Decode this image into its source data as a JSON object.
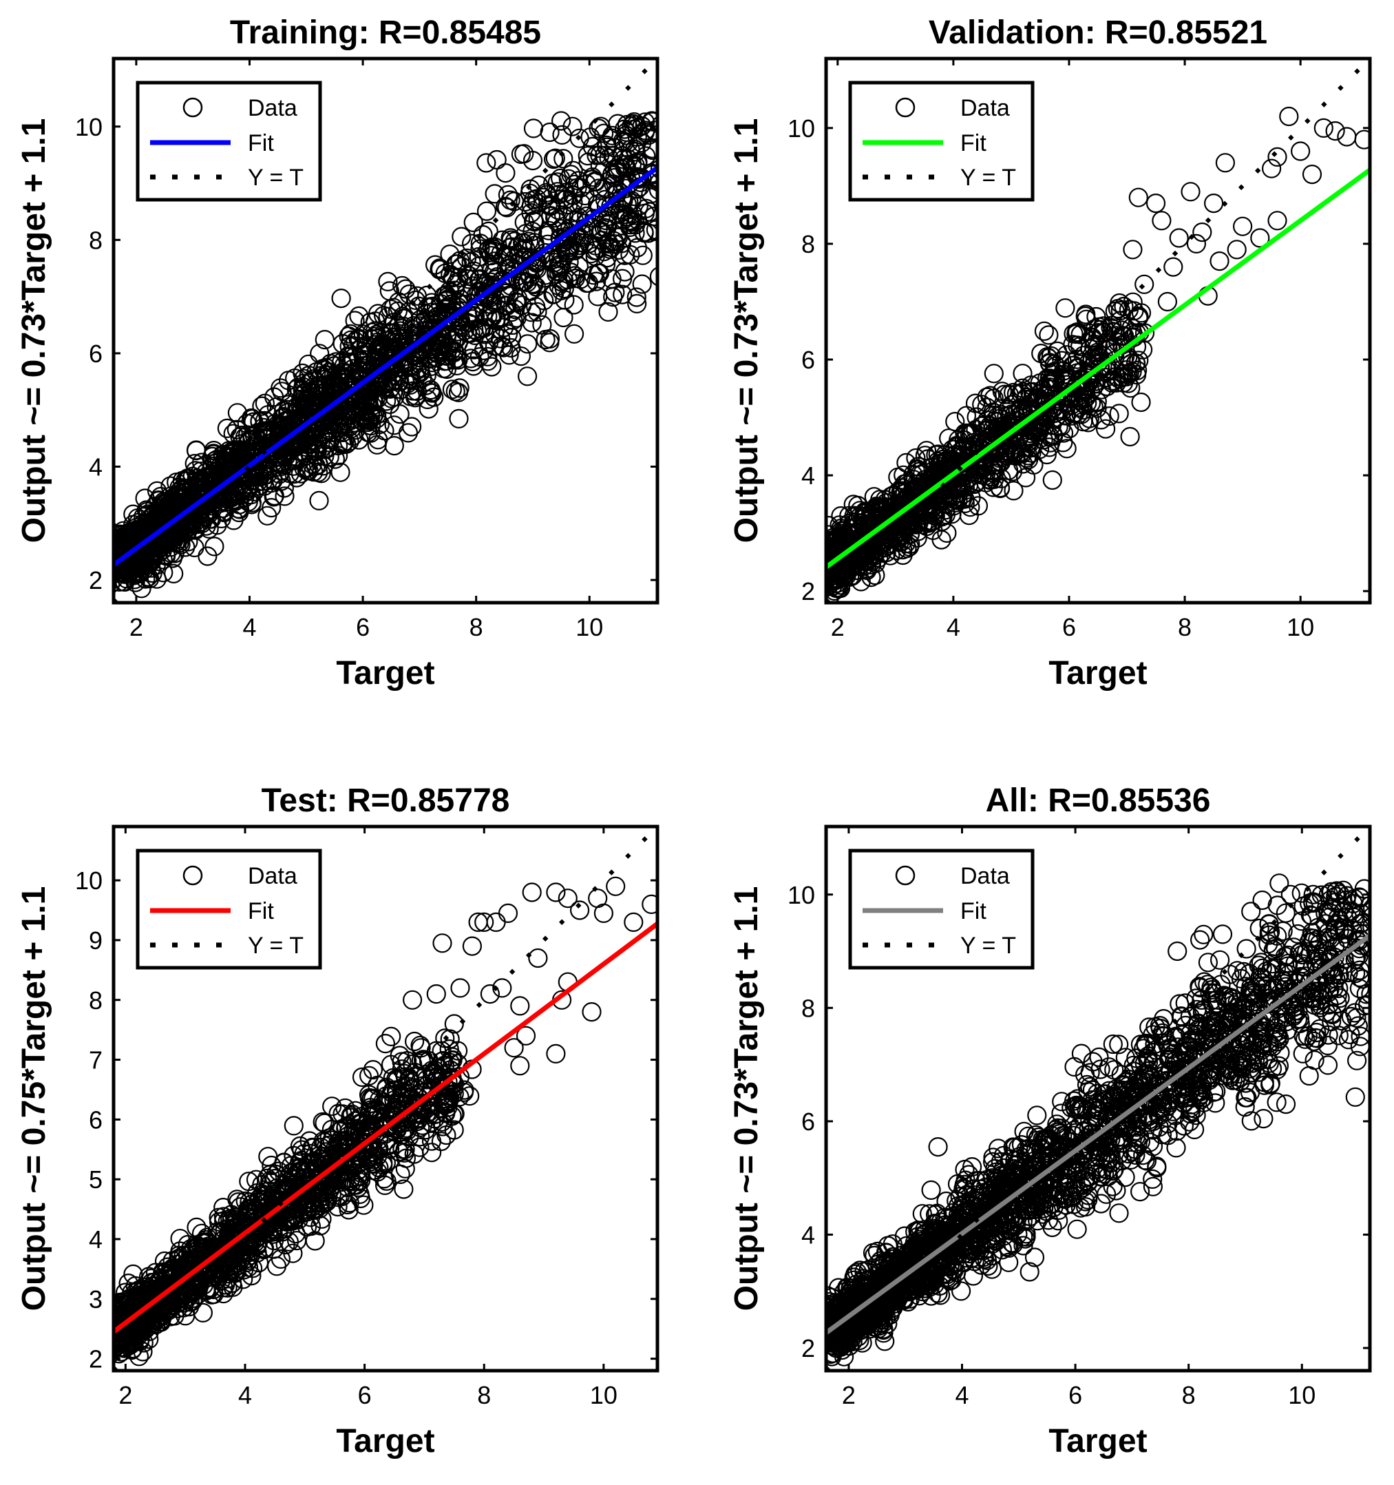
{
  "figure": {
    "background": "#ffffff",
    "axis_color": "#000000",
    "data_marker_color": "#000000"
  },
  "chart_data": [
    {
      "type": "scatter",
      "title": "Training: R=0.85485",
      "xlabel": "Target",
      "ylabel": "Output ~= 0.73*Target + 1.1",
      "xlim": [
        1.6,
        11.2
      ],
      "ylim": [
        1.6,
        11.2
      ],
      "xticks": [
        2,
        4,
        6,
        8,
        10
      ],
      "yticks": [
        2,
        4,
        6,
        8,
        10
      ],
      "legend": {
        "position": "top-left",
        "entries": [
          "Data",
          "Fit",
          "Y = T"
        ]
      },
      "fit": {
        "slope": 0.73,
        "intercept": 1.1,
        "color": "#0000ff"
      },
      "identity_line": {
        "label": "Y = T",
        "style": "dotted",
        "color": "#000000"
      },
      "data_cloud": {
        "x_range": [
          1.7,
          11.1
        ],
        "y_range": [
          1.8,
          10.1
        ],
        "spread": 0.6,
        "seed": 11,
        "count": 2200
      },
      "outliers": [
        [
          9.5,
          10.1
        ],
        [
          10.2,
          10.0
        ],
        [
          10.8,
          9.6
        ],
        [
          11.1,
          10.1
        ],
        [
          10.5,
          10.05
        ],
        [
          9.3,
          9.9
        ],
        [
          9.7,
          10.0
        ],
        [
          9.0,
          9.4
        ]
      ]
    },
    {
      "type": "scatter",
      "title": "Validation: R=0.85521",
      "xlabel": "Target",
      "ylabel": "Output ~= 0.73*Target + 1.1",
      "xlim": [
        1.8,
        11.2
      ],
      "ylim": [
        1.8,
        11.2
      ],
      "xticks": [
        2,
        4,
        6,
        8,
        10
      ],
      "yticks": [
        2,
        4,
        6,
        8,
        10
      ],
      "legend": {
        "position": "top-left",
        "entries": [
          "Data",
          "Fit",
          "Y = T"
        ]
      },
      "fit": {
        "slope": 0.73,
        "intercept": 1.1,
        "color": "#00ff00"
      },
      "identity_line": {
        "label": "Y = T",
        "style": "dotted",
        "color": "#000000"
      },
      "data_cloud": {
        "x_range": [
          1.8,
          7.2
        ],
        "y_range": [
          2.0,
          7.0
        ],
        "spread": 0.55,
        "seed": 23,
        "count": 1300
      },
      "outliers": [
        [
          9.8,
          10.2
        ],
        [
          10.4,
          10.0
        ],
        [
          10.6,
          9.95
        ],
        [
          11.1,
          9.8
        ],
        [
          10.8,
          9.85
        ],
        [
          9.6,
          9.5
        ],
        [
          10.0,
          9.6
        ],
        [
          10.2,
          9.2
        ],
        [
          9.5,
          9.3
        ],
        [
          8.7,
          9.4
        ],
        [
          8.5,
          8.7
        ],
        [
          8.2,
          8.0
        ],
        [
          8.9,
          7.9
        ],
        [
          9.3,
          8.1
        ],
        [
          9.0,
          8.3
        ],
        [
          7.6,
          8.4
        ],
        [
          7.5,
          8.7
        ],
        [
          7.9,
          8.1
        ],
        [
          8.1,
          8.9
        ],
        [
          7.2,
          8.8
        ],
        [
          7.3,
          7.3
        ],
        [
          8.3,
          8.2
        ],
        [
          7.8,
          7.6
        ],
        [
          8.6,
          7.7
        ],
        [
          9.6,
          8.4
        ],
        [
          8.4,
          7.1
        ],
        [
          7.1,
          7.9
        ],
        [
          7.7,
          7.0
        ]
      ]
    },
    {
      "type": "scatter",
      "title": "Test: R=0.85778",
      "xlabel": "Target",
      "ylabel": "Output ~= 0.75*Target + 1.1",
      "xlim": [
        1.8,
        10.9
      ],
      "ylim": [
        1.8,
        10.9
      ],
      "xticks": [
        2,
        4,
        6,
        8,
        10
      ],
      "yticks": [
        2,
        3,
        4,
        5,
        6,
        7,
        8,
        9,
        10
      ],
      "legend": {
        "position": "top-left",
        "entries": [
          "Data",
          "Fit",
          "Y = T"
        ]
      },
      "fit": {
        "slope": 0.75,
        "intercept": 1.1,
        "color": "#ff0000"
      },
      "identity_line": {
        "label": "Y = T",
        "style": "dotted",
        "color": "#000000"
      },
      "data_cloud": {
        "x_range": [
          1.8,
          7.5
        ],
        "y_range": [
          2.0,
          7.6
        ],
        "spread": 0.5,
        "seed": 37,
        "count": 1500
      },
      "outliers": [
        [
          10.2,
          9.9
        ],
        [
          9.9,
          9.7
        ],
        [
          10.8,
          9.6
        ],
        [
          10.5,
          9.3
        ],
        [
          9.4,
          9.7
        ],
        [
          9.6,
          9.5
        ],
        [
          10.0,
          9.45
        ],
        [
          9.2,
          9.8
        ],
        [
          8.8,
          9.8
        ],
        [
          8.4,
          9.45
        ],
        [
          8.0,
          9.3
        ],
        [
          7.9,
          9.3
        ],
        [
          8.2,
          9.3
        ],
        [
          7.3,
          8.95
        ],
        [
          7.8,
          8.9
        ],
        [
          9.3,
          8.0
        ],
        [
          9.8,
          7.8
        ],
        [
          8.6,
          7.9
        ],
        [
          8.5,
          7.2
        ],
        [
          8.3,
          8.2
        ],
        [
          8.9,
          8.7
        ],
        [
          9.4,
          8.3
        ],
        [
          7.6,
          8.2
        ],
        [
          7.2,
          8.1
        ],
        [
          6.8,
          8.0
        ],
        [
          8.6,
          6.9
        ],
        [
          8.7,
          7.4
        ],
        [
          8.1,
          8.1
        ],
        [
          7.5,
          7.6
        ],
        [
          9.2,
          7.1
        ]
      ]
    },
    {
      "type": "scatter",
      "title": "All: R=0.85536",
      "xlabel": "Target",
      "ylabel": "Output ~= 0.73*Target + 1.1",
      "xlim": [
        1.6,
        11.2
      ],
      "ylim": [
        1.6,
        11.2
      ],
      "xticks": [
        2,
        4,
        6,
        8,
        10
      ],
      "yticks": [
        2,
        4,
        6,
        8,
        10
      ],
      "legend": {
        "position": "top-left",
        "entries": [
          "Data",
          "Fit",
          "Y = T"
        ]
      },
      "fit": {
        "slope": 0.73,
        "intercept": 1.1,
        "color": "#808080"
      },
      "identity_line": {
        "label": "Y = T",
        "style": "dotted",
        "color": "#000000"
      },
      "data_cloud": {
        "x_range": [
          1.7,
          11.1
        ],
        "y_range": [
          1.8,
          10.1
        ],
        "spread": 0.6,
        "seed": 53,
        "count": 2400
      },
      "outliers": [
        [
          9.6,
          10.2
        ],
        [
          10.2,
          10.0
        ],
        [
          10.8,
          9.6
        ],
        [
          11.1,
          10.1
        ],
        [
          11.2,
          9.8
        ],
        [
          10.5,
          9.9
        ],
        [
          9.3,
          9.9
        ],
        [
          9.8,
          10.0
        ],
        [
          8.6,
          9.3
        ],
        [
          7.8,
          9.0
        ],
        [
          8.2,
          9.2
        ],
        [
          9.1,
          9.7
        ]
      ]
    }
  ]
}
